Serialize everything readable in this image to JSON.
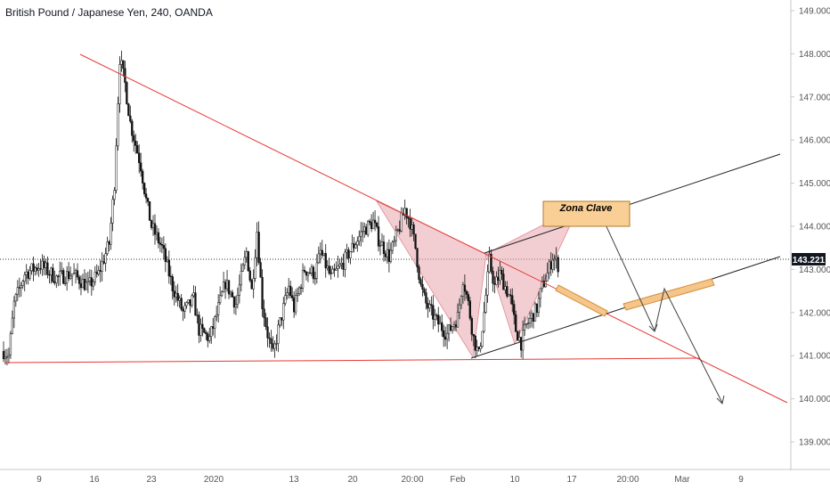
{
  "chart_data": {
    "type": "candlestick",
    "title": "British Pound / Japanese Yen, 240, OANDA",
    "y_ticks": [
      "149.000",
      "148.000",
      "147.000",
      "146.000",
      "145.000",
      "144.000",
      "143.000",
      "142.000",
      "141.000",
      "140.000",
      "139.000"
    ],
    "x_ticks": [
      "9",
      "16",
      "23",
      "2020",
      "13",
      "20",
      "20:00",
      "Feb",
      "10",
      "17",
      "20:00",
      "Mar",
      "9"
    ],
    "ylim": [
      138.6,
      149.3
    ],
    "current_price": "143.221",
    "annotation": {
      "label": "Zona Clave"
    },
    "price_path": [
      [
        0,
        141.1
      ],
      [
        1,
        141.0
      ],
      [
        2,
        142.2
      ],
      [
        4,
        142.9
      ],
      [
        7,
        143.1
      ],
      [
        10,
        142.8
      ],
      [
        13,
        142.9
      ],
      [
        16,
        142.6
      ],
      [
        18,
        142.9
      ],
      [
        20,
        143.6
      ],
      [
        21,
        145.0
      ],
      [
        22,
        147.9
      ],
      [
        23,
        147.3
      ],
      [
        24,
        146.4
      ],
      [
        25,
        145.9
      ],
      [
        26,
        145.4
      ],
      [
        27,
        144.6
      ],
      [
        28,
        144.0
      ],
      [
        30,
        143.5
      ],
      [
        32,
        142.6
      ],
      [
        34,
        142.0
      ],
      [
        36,
        142.3
      ],
      [
        37,
        141.6
      ],
      [
        39,
        141.4
      ],
      [
        40,
        141.8
      ],
      [
        42,
        142.7
      ],
      [
        44,
        142.2
      ],
      [
        46,
        143.4
      ],
      [
        47,
        142.5
      ],
      [
        48,
        143.9
      ],
      [
        49,
        142.2
      ],
      [
        50,
        141.5
      ],
      [
        51,
        141.0
      ],
      [
        52,
        141.6
      ],
      [
        54,
        142.6
      ],
      [
        55,
        142.1
      ],
      [
        57,
        143.0
      ],
      [
        59,
        142.9
      ],
      [
        60,
        143.4
      ],
      [
        62,
        142.8
      ],
      [
        64,
        143.1
      ],
      [
        66,
        143.5
      ],
      [
        68,
        143.9
      ],
      [
        70,
        144.1
      ],
      [
        71,
        143.7
      ],
      [
        73,
        143.3
      ],
      [
        74,
        143.6
      ],
      [
        75,
        144.0
      ],
      [
        76,
        144.4
      ],
      [
        77,
        144.1
      ],
      [
        78,
        143.5
      ],
      [
        79,
        142.6
      ],
      [
        80,
        142.2
      ],
      [
        82,
        141.8
      ],
      [
        84,
        141.5
      ],
      [
        86,
        141.9
      ],
      [
        87,
        142.8
      ],
      [
        88,
        142.2
      ],
      [
        89,
        141.4
      ],
      [
        90,
        141.0
      ],
      [
        91,
        142.0
      ],
      [
        92,
        143.2
      ],
      [
        93,
        142.6
      ],
      [
        94,
        142.9
      ],
      [
        96,
        142.3
      ],
      [
        97,
        141.6
      ],
      [
        98,
        141.3
      ],
      [
        99,
        141.7
      ],
      [
        101,
        142.1
      ],
      [
        102,
        142.6
      ],
      [
        103,
        142.9
      ],
      [
        104,
        143.3
      ],
      [
        105,
        143.1
      ]
    ]
  }
}
